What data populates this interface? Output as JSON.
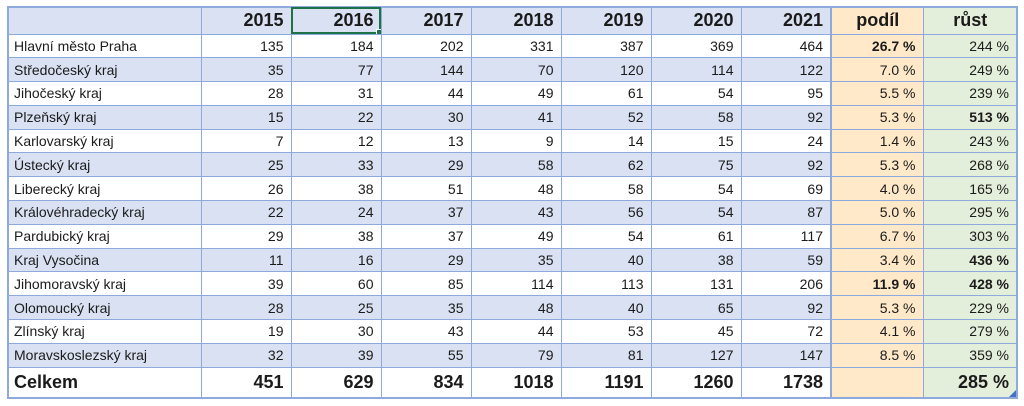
{
  "table": {
    "corner_label": "",
    "year_headers": [
      "2015",
      "2016",
      "2017",
      "2018",
      "2019",
      "2020",
      "2021"
    ],
    "podil_header": "podíl",
    "rust_header": "růst",
    "active_cell": "2016",
    "rows": [
      {
        "name": "Hlavní město Praha",
        "values": [
          135,
          184,
          202,
          331,
          387,
          369,
          464
        ],
        "podil": "26.7 %",
        "podil_bold": true,
        "rust": "244 %",
        "rust_bold": false
      },
      {
        "name": "Středočeský kraj",
        "values": [
          35,
          77,
          144,
          70,
          120,
          114,
          122
        ],
        "podil": "7.0 %",
        "podil_bold": false,
        "rust": "249 %",
        "rust_bold": false
      },
      {
        "name": "Jihočeský kraj",
        "values": [
          28,
          31,
          44,
          49,
          61,
          54,
          95
        ],
        "podil": "5.5 %",
        "podil_bold": false,
        "rust": "239 %",
        "rust_bold": false
      },
      {
        "name": "Plzeňský kraj",
        "values": [
          15,
          22,
          30,
          41,
          52,
          58,
          92
        ],
        "podil": "5.3 %",
        "podil_bold": false,
        "rust": "513 %",
        "rust_bold": true
      },
      {
        "name": "Karlovarský kraj",
        "values": [
          7,
          12,
          13,
          9,
          14,
          15,
          24
        ],
        "podil": "1.4 %",
        "podil_bold": false,
        "rust": "243 %",
        "rust_bold": false
      },
      {
        "name": "Ústecký kraj",
        "values": [
          25,
          33,
          29,
          58,
          62,
          75,
          92
        ],
        "podil": "5.3 %",
        "podil_bold": false,
        "rust": "268 %",
        "rust_bold": false
      },
      {
        "name": "Liberecký kraj",
        "values": [
          26,
          38,
          51,
          48,
          58,
          54,
          69
        ],
        "podil": "4.0 %",
        "podil_bold": false,
        "rust": "165 %",
        "rust_bold": false
      },
      {
        "name": "Královéhradecký kraj",
        "values": [
          22,
          24,
          37,
          43,
          56,
          54,
          87
        ],
        "podil": "5.0 %",
        "podil_bold": false,
        "rust": "295 %",
        "rust_bold": false
      },
      {
        "name": "Pardubický kraj",
        "values": [
          29,
          38,
          37,
          49,
          54,
          61,
          117
        ],
        "podil": "6.7 %",
        "podil_bold": false,
        "rust": "303 %",
        "rust_bold": false
      },
      {
        "name": "Kraj Vysočina",
        "values": [
          11,
          16,
          29,
          35,
          40,
          38,
          59
        ],
        "podil": "3.4 %",
        "podil_bold": false,
        "rust": "436 %",
        "rust_bold": true
      },
      {
        "name": "Jihomoravský kraj",
        "values": [
          39,
          60,
          85,
          114,
          113,
          131,
          206
        ],
        "podil": "11.9 %",
        "podil_bold": true,
        "rust": "428 %",
        "rust_bold": true
      },
      {
        "name": "Olomoucký kraj",
        "values": [
          28,
          25,
          35,
          48,
          40,
          65,
          92
        ],
        "podil": "5.3 %",
        "podil_bold": false,
        "rust": "229 %",
        "rust_bold": false
      },
      {
        "name": "Zlínský kraj",
        "values": [
          19,
          30,
          43,
          44,
          53,
          45,
          72
        ],
        "podil": "4.1 %",
        "podil_bold": false,
        "rust": "279 %",
        "rust_bold": false
      },
      {
        "name": "Moravskoslezský kraj",
        "values": [
          32,
          39,
          55,
          79,
          81,
          127,
          147
        ],
        "podil": "8.5 %",
        "podil_bold": false,
        "rust": "359 %",
        "rust_bold": false
      }
    ],
    "total_row": {
      "name": "Celkem",
      "values": [
        451,
        629,
        834,
        1018,
        1191,
        1260,
        1738
      ],
      "podil": "",
      "rust": "285 %"
    }
  },
  "colors": {
    "stripe_fill": "#D9E1F2",
    "grid_border": "#8EA9DB",
    "podil_fill": "#FFE9C8",
    "rust_fill": "#E3EFDA",
    "active_cell_border": "#1F7246",
    "corner_handle": "#4472C4",
    "text": "#1b1b1b"
  }
}
